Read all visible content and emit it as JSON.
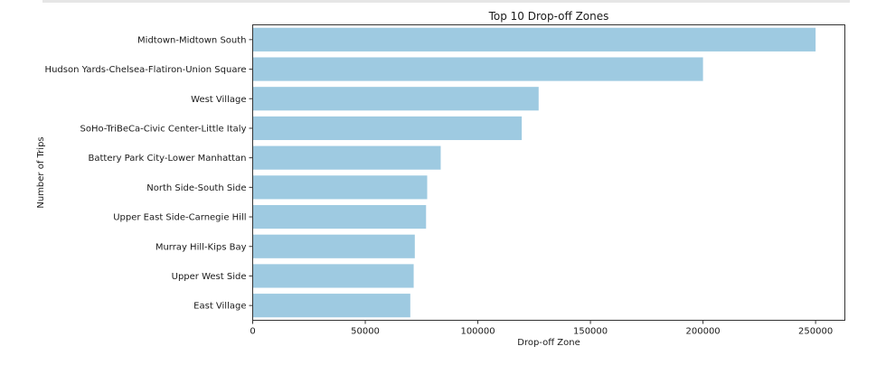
{
  "chart_data": {
    "type": "bar",
    "orientation": "horizontal",
    "title": "Top 10 Drop-off Zones",
    "xlabel": "Drop-off Zone",
    "ylabel": "Number of Trips",
    "categories": [
      "Midtown-Midtown South",
      "Hudson Yards-Chelsea-Flatiron-Union Square",
      "West Village",
      "SoHo-TriBeCa-Civic Center-Little Italy",
      "Battery Park City-Lower Manhattan",
      "North Side-South Side",
      "Upper East Side-Carnegie Hill",
      "Murray Hill-Kips Bay",
      "Upper West Side",
      "East Village"
    ],
    "values": [
      250000,
      200000,
      127000,
      119500,
      83500,
      77500,
      77000,
      72000,
      71500,
      70000
    ],
    "xlim": [
      0,
      263000
    ],
    "xticks": [
      0,
      50000,
      100000,
      150000,
      200000,
      250000
    ],
    "xtick_labels": [
      "0",
      "50000",
      "100000",
      "150000",
      "200000",
      "250000"
    ],
    "bar_color": "#9ecae1",
    "grid": false
  }
}
